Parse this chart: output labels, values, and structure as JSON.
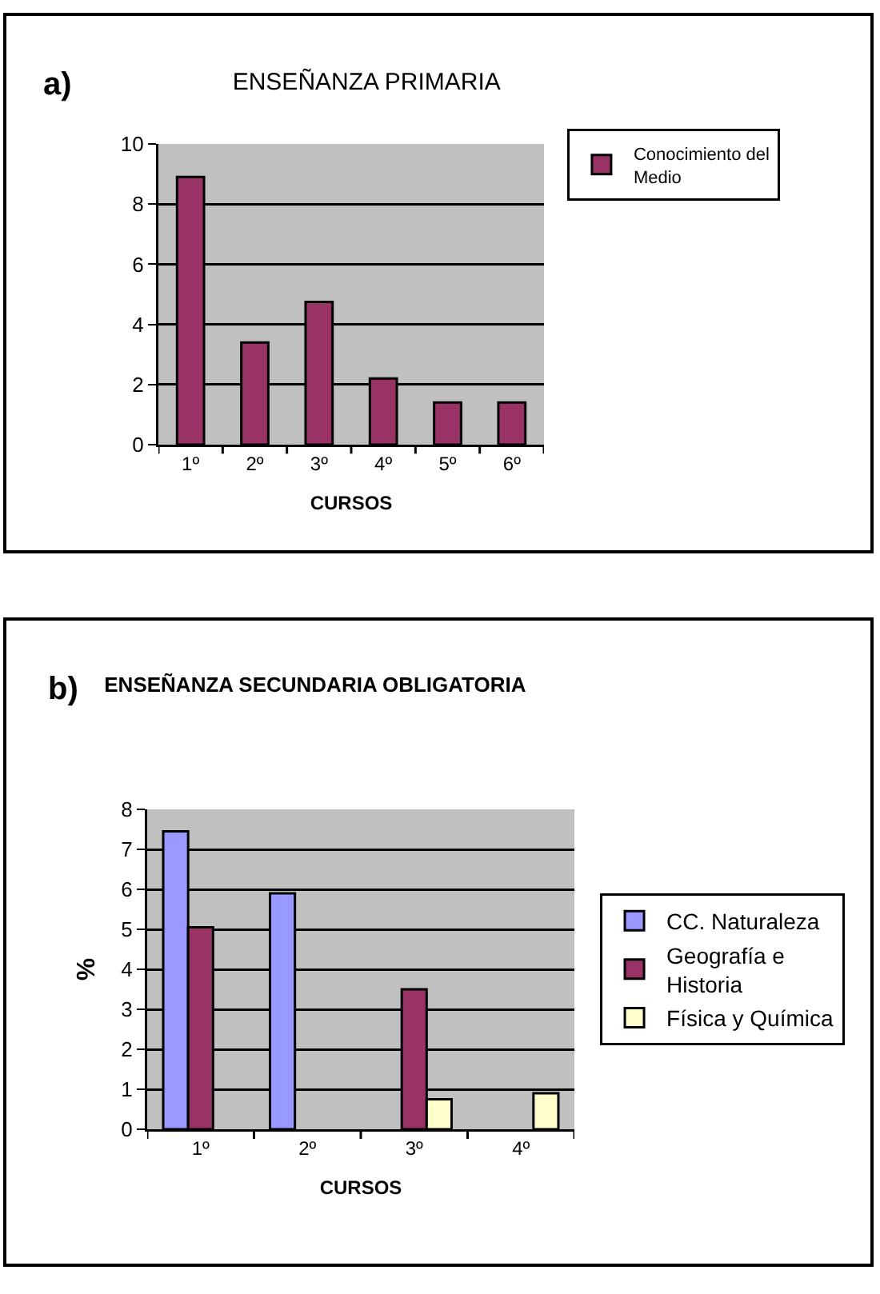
{
  "chart_data": [
    {
      "type": "bar",
      "title": "ENSEÑANZA PRIMARIA",
      "annotations": [
        "a)"
      ],
      "categories": [
        "1º",
        "2º",
        "3º",
        "4º",
        "5º",
        "6º"
      ],
      "series": [
        {
          "name": "Conocimiento del Medio",
          "color": "#993366",
          "values": [
            8.9,
            3.4,
            4.75,
            2.2,
            1.4,
            1.4
          ]
        }
      ],
      "ylim": [
        0,
        10
      ],
      "yticks": [
        0,
        2,
        4,
        6,
        8,
        10
      ],
      "grid": "y",
      "legend": "top right",
      "xlabel": "CURSOS"
    },
    {
      "type": "bar",
      "title": "ENSEÑANZA SECUNDARIA OBLIGATORIA",
      "annotations": [
        "b)"
      ],
      "categories": [
        "1º",
        "2º",
        "3º",
        "4º"
      ],
      "series": [
        {
          "name": "CC. Naturaleza",
          "color": "#9999ff",
          "values": [
            7.45,
            5.9,
            null,
            null
          ]
        },
        {
          "name": "Geografía e Historia",
          "color": "#993366",
          "values": [
            5.05,
            null,
            3.5,
            null
          ]
        },
        {
          "name": "Física y Química",
          "color": "#ffffcc",
          "values": [
            null,
            null,
            0.75,
            0.9
          ]
        }
      ],
      "ylim": [
        0,
        8
      ],
      "yticks": [
        0,
        1,
        2,
        3,
        4,
        5,
        6,
        7,
        8
      ],
      "grid": "y",
      "legend": "right",
      "xlabel": "CURSOS",
      "ylabel": "%"
    }
  ]
}
